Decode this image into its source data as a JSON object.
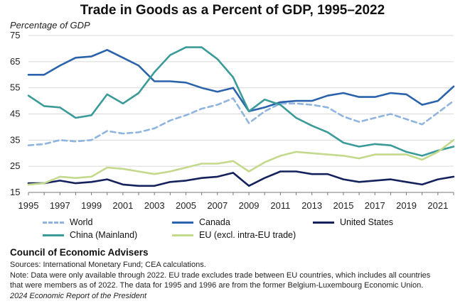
{
  "chart_data": {
    "type": "line",
    "title": "Trade in Goods as a Percent of GDP, 1995–2022",
    "ylabel": "Percentage of GDP",
    "xlabel": "",
    "ylim": [
      15,
      75
    ],
    "xlim": [
      1995,
      2022
    ],
    "yticks": [
      "15",
      "25",
      "35",
      "45",
      "55",
      "65",
      "75"
    ],
    "xticks": [
      "1995",
      "1997",
      "1999",
      "2001",
      "2003",
      "2005",
      "2007",
      "2009",
      "2011",
      "2013",
      "2015",
      "2017",
      "2019",
      "2021"
    ],
    "grid": "horizontal",
    "legend_position": "bottom",
    "x": [
      1995,
      1996,
      1997,
      1998,
      1999,
      2000,
      2001,
      2002,
      2003,
      2004,
      2005,
      2006,
      2007,
      2008,
      2009,
      2010,
      2011,
      2012,
      2013,
      2014,
      2015,
      2016,
      2017,
      2018,
      2019,
      2020,
      2021,
      2022
    ],
    "series": [
      {
        "name": "World",
        "color": "#8fb4de",
        "dash": true,
        "values": [
          33,
          33.5,
          35,
          34.5,
          35,
          38.5,
          37.5,
          38,
          39.5,
          42.5,
          44.5,
          47,
          48.5,
          51,
          41.5,
          46,
          49,
          49,
          48.5,
          47.5,
          44,
          42,
          43.5,
          45,
          43,
          41,
          45.5,
          50
        ]
      },
      {
        "name": "Canada",
        "color": "#2a63ac",
        "dash": false,
        "values": [
          60,
          60,
          63.5,
          66.5,
          67,
          69.5,
          66.5,
          63.5,
          57.5,
          57.5,
          57,
          55,
          53.5,
          55,
          46,
          47.5,
          49.5,
          50,
          50,
          52,
          53,
          51.5,
          51.5,
          53,
          52.5,
          48.5,
          50,
          55.5
        ]
      },
      {
        "name": "United States",
        "color": "#14215c",
        "dash": false,
        "values": [
          18.5,
          18.5,
          19.5,
          18.5,
          19,
          20,
          18,
          17.5,
          17.5,
          19,
          19.5,
          20.5,
          21,
          22.5,
          17.5,
          20.5,
          23,
          23,
          22,
          22,
          20,
          19,
          19.5,
          20,
          19,
          18,
          20,
          21
        ]
      },
      {
        "name": "China (Mainland)",
        "color": "#3a9b98",
        "dash": false,
        "values": [
          52,
          48,
          47.5,
          43.5,
          44.5,
          52.5,
          49,
          53,
          61,
          67.5,
          70.5,
          70.5,
          66,
          59,
          46,
          50.5,
          48.5,
          43.5,
          40.5,
          38,
          34,
          32.5,
          33.5,
          33,
          30.5,
          29,
          31,
          32.5
        ]
      },
      {
        "name": "EU (excl. intra-EU trade)",
        "color": "#c3d98b",
        "dash": false,
        "values": [
          18,
          18.5,
          21,
          20.5,
          21,
          24.5,
          24,
          23,
          22,
          23,
          24.5,
          26,
          26,
          27,
          23,
          26.5,
          29,
          30.5,
          30,
          29.5,
          29,
          28,
          29.5,
          29.5,
          29.5,
          27.5,
          30.5,
          35
        ]
      }
    ]
  },
  "footer": {
    "org": "Council of Economic Advisers",
    "sources": "Sources: International Monetary Fund; CEA calculations.",
    "note_line1": "Note: Data were only available through 2022. EU trade excludes trade between EU countries, which includes all countries",
    "note_line2": "that were members as of 2022. The data for 1995 and 1996 are from the former Belgium-Luxembourg Economic Union.",
    "report": "2024 Economic Report of the President"
  }
}
